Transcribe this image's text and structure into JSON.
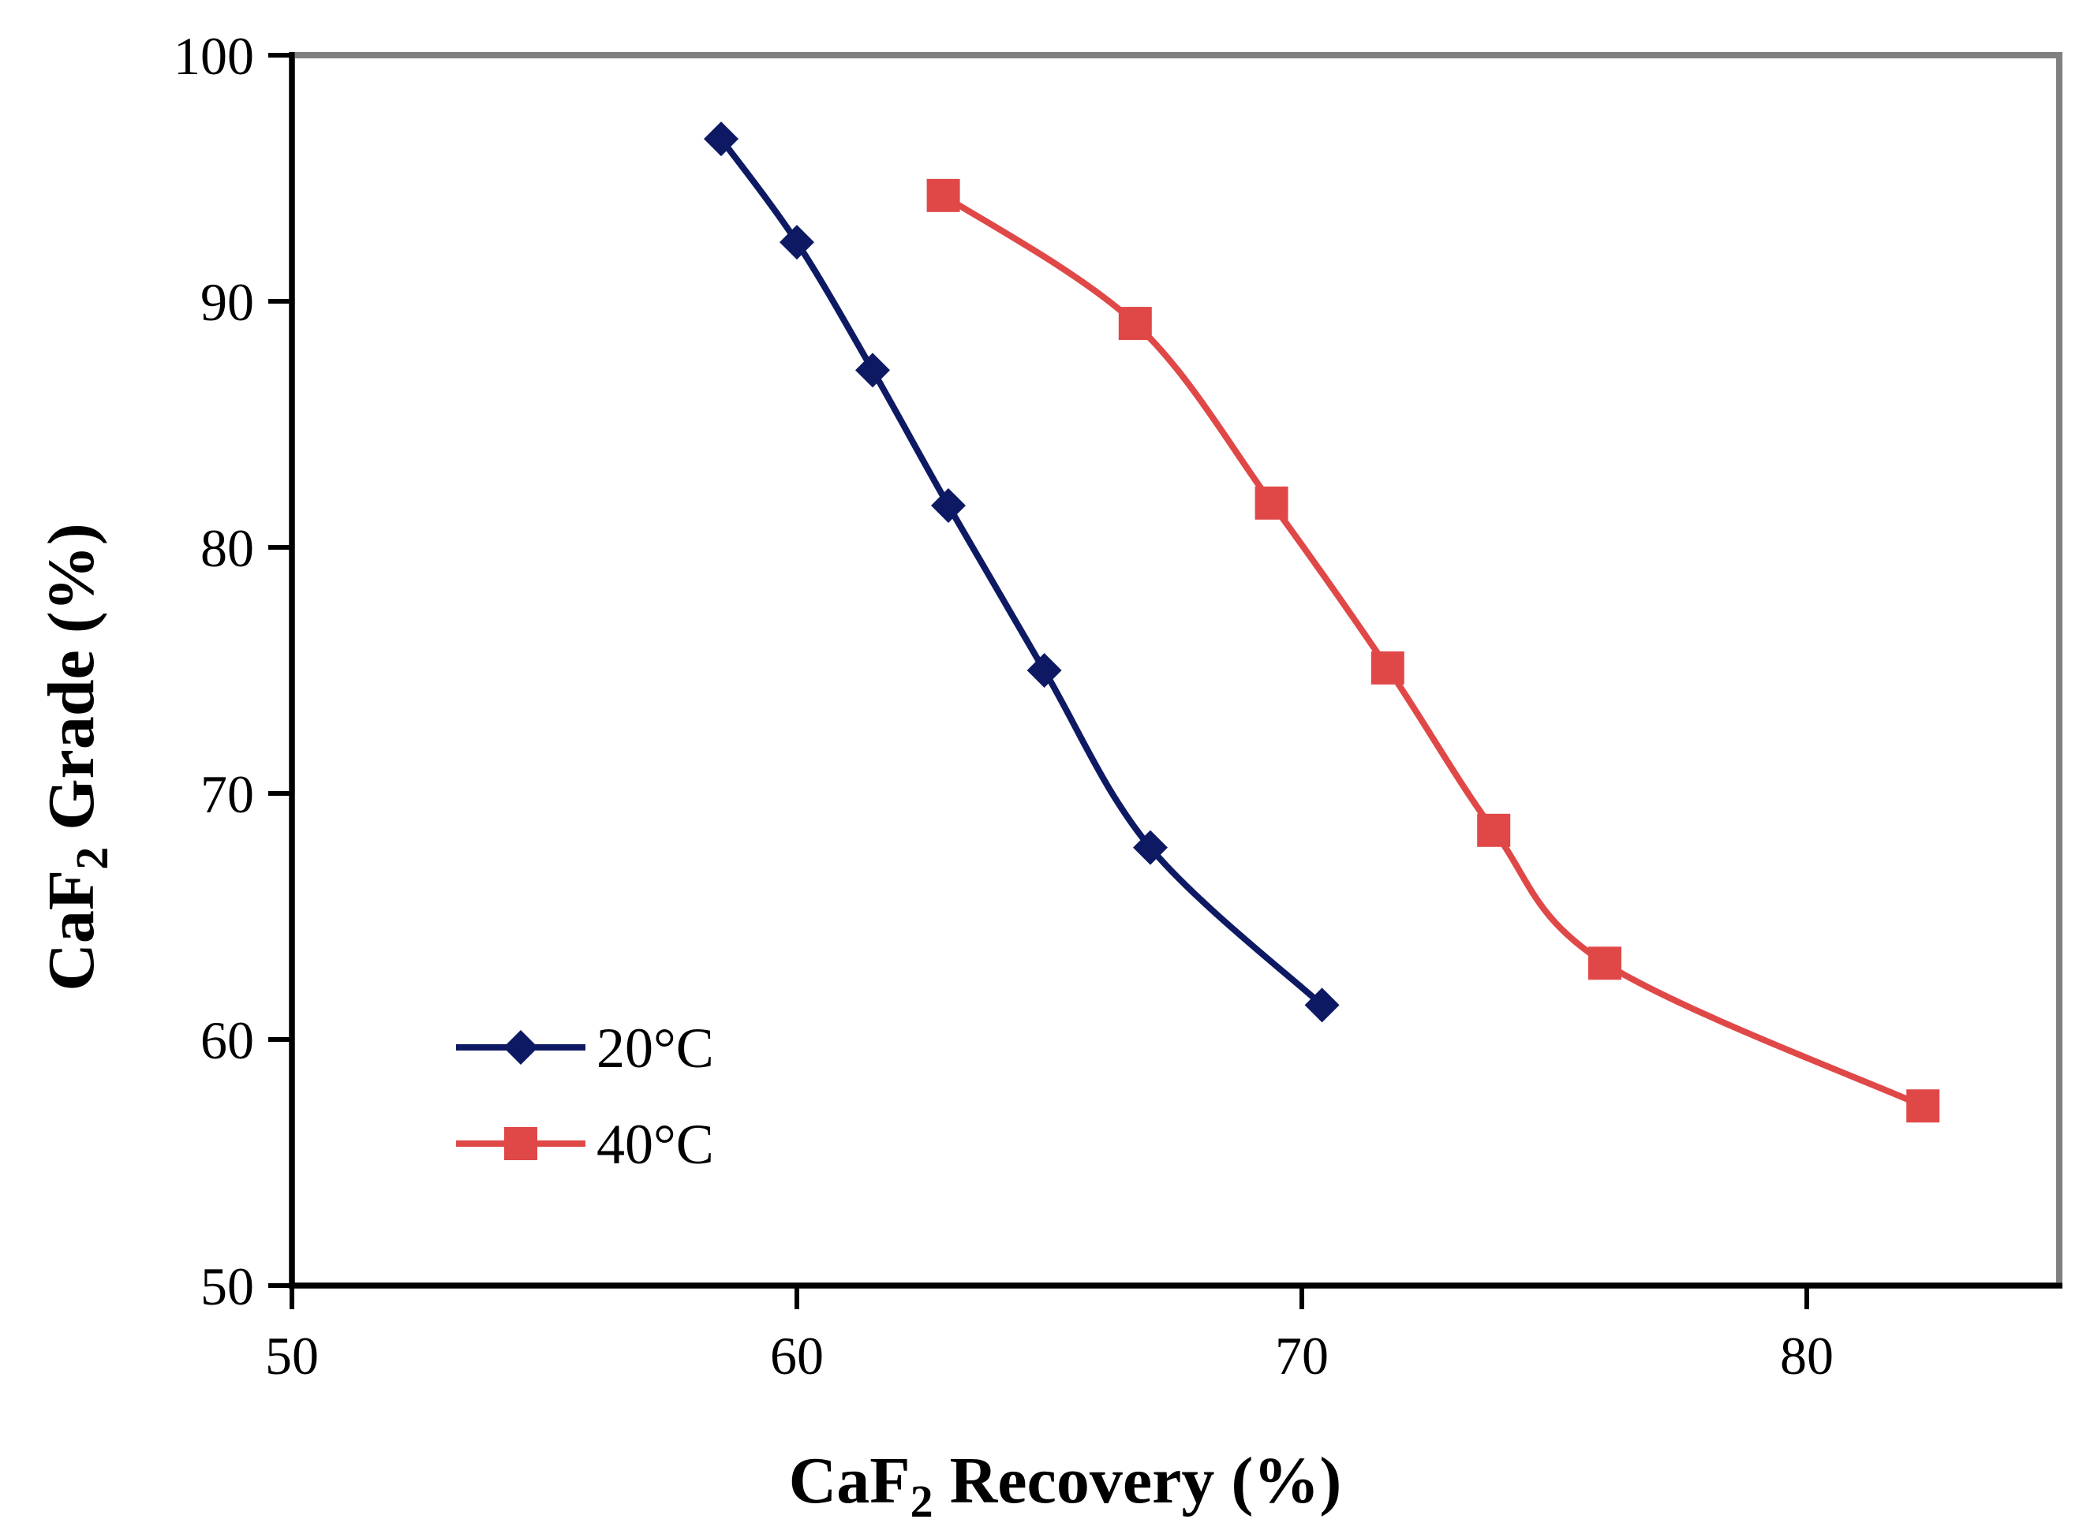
{
  "chart_data": {
    "type": "line",
    "title": "",
    "xlabel": {
      "prefix": "CaF",
      "sub": "2",
      "suffix": " Recovery (%)"
    },
    "ylabel": {
      "prefix": "CaF",
      "sub": "2",
      "suffix": " Grade (%)"
    },
    "xlim": [
      50,
      85
    ],
    "ylim": [
      50,
      100
    ],
    "xticks": [
      50,
      60,
      70,
      80
    ],
    "yticks": [
      50,
      60,
      70,
      80,
      90,
      100
    ],
    "grid": false,
    "legend_position": "bottom-left",
    "series": [
      {
        "name": "20°C",
        "color": "#0d1a63",
        "marker": "diamond",
        "x": [
          58.5,
          60.0,
          61.5,
          63.0,
          64.9,
          67.0,
          70.4
        ],
        "y": [
          96.6,
          92.4,
          87.2,
          81.7,
          75.0,
          67.8,
          61.4
        ]
      },
      {
        "name": "40°C",
        "color": "#e04848",
        "marker": "square",
        "x": [
          62.9,
          66.7,
          69.4,
          71.7,
          73.8,
          76.0,
          82.3
        ],
        "y": [
          94.3,
          89.1,
          81.8,
          75.1,
          68.5,
          63.1,
          57.3
        ]
      }
    ]
  }
}
